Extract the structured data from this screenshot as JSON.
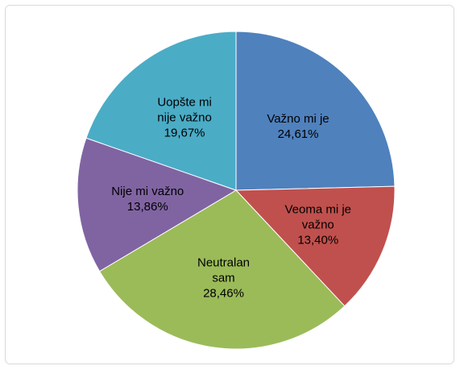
{
  "chart_data": {
    "type": "pie",
    "categories": [
      "Važno mi je",
      "Veoma mi je važno",
      "Neutralan sam",
      "Nije mi važno",
      "Uopšte mi nije važno"
    ],
    "values": [
      24.61,
      13.4,
      28.46,
      13.86,
      19.67
    ],
    "value_labels": [
      "24,61%",
      "13,40%",
      "28,46%",
      "13,86%",
      "19,67%"
    ],
    "colors": [
      "#4f81bd",
      "#c0504d",
      "#9bbb59",
      "#8064a2",
      "#4bacc6"
    ]
  }
}
